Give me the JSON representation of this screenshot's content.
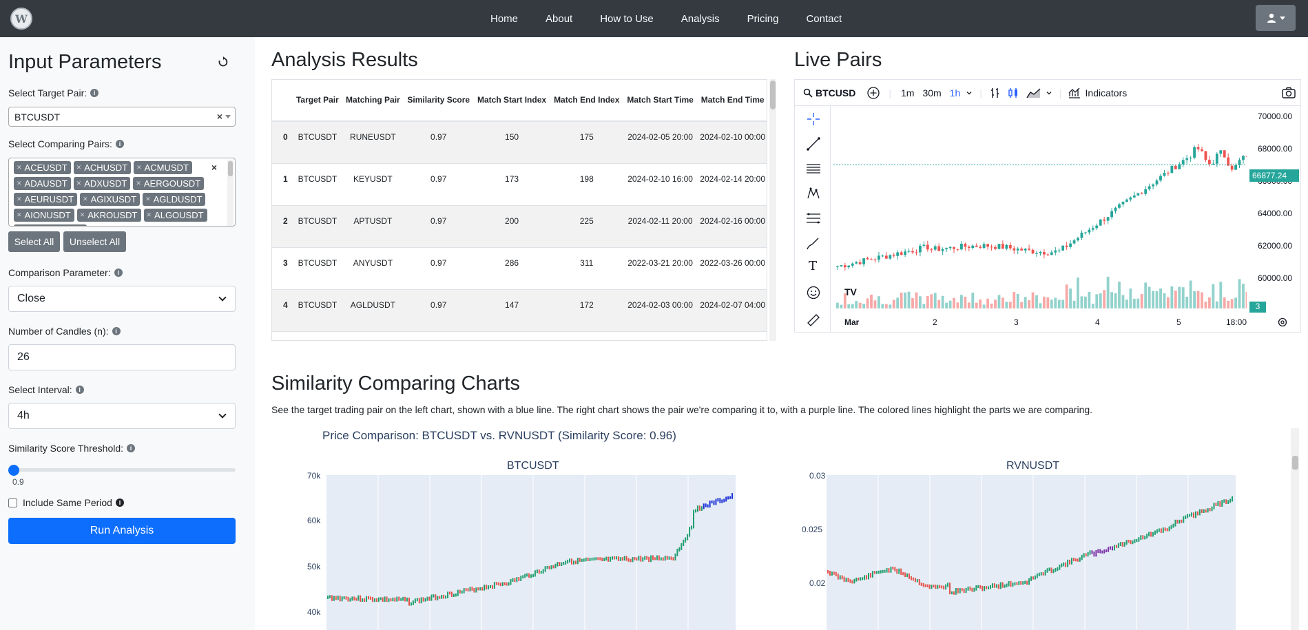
{
  "nav": {
    "logo_text": "W",
    "links": [
      "Home",
      "About",
      "How to Use",
      "Analysis",
      "Pricing",
      "Contact"
    ],
    "user_icon": "user-icon"
  },
  "input_panel": {
    "title": "Input Parameters",
    "reset_icon": "reset-icon",
    "target_pair_label": "Select Target Pair:",
    "target_pair_value": "BTCUSDT",
    "comparing_pairs_label": "Select Comparing Pairs:",
    "comparing_pairs": [
      "ACEUSDT",
      "ACHUSDT",
      "ACMUSDT",
      "ADAUSDT",
      "ADXUSDT",
      "AERGOUSDT",
      "AEURUSDT",
      "AGIXUSDT",
      "AGLDUSDT",
      "AIONUSDT",
      "AKROUSDT",
      "ALGOUSDT",
      "ALPACAUSDT"
    ],
    "select_all": "Select All",
    "unselect_all": "Unselect All",
    "comparison_parameter_label": "Comparison Parameter:",
    "comparison_parameter_value": "Close",
    "num_candles_label": "Number of Candles (n):",
    "num_candles_value": "26",
    "interval_label": "Select Interval:",
    "interval_value": "4h",
    "threshold_label": "Similarity Score Threshold:",
    "threshold_value": "0.9",
    "include_same_period_label": "Include Same Period",
    "include_same_period_checked": false,
    "run_button": "Run Analysis"
  },
  "analysis": {
    "title": "Analysis Results",
    "columns": [
      "",
      "Target Pair",
      "Matching Pair",
      "Similarity Score",
      "Match Start Index",
      "Match End Index",
      "Match Start Time",
      "Match End Time"
    ],
    "rows": [
      [
        "0",
        "BTCUSDT",
        "RUNEUSDT",
        "0.97",
        "150",
        "175",
        "2024-02-05 20:00",
        "2024-02-10 00:00"
      ],
      [
        "1",
        "BTCUSDT",
        "KEYUSDT",
        "0.97",
        "173",
        "198",
        "2024-02-10 16:00",
        "2024-02-14 20:00"
      ],
      [
        "2",
        "BTCUSDT",
        "APTUSDT",
        "0.97",
        "200",
        "225",
        "2024-02-11 20:00",
        "2024-02-16 00:00"
      ],
      [
        "3",
        "BTCUSDT",
        "ANYUSDT",
        "0.97",
        "286",
        "311",
        "2022-03-21 20:00",
        "2022-03-26 00:00"
      ],
      [
        "4",
        "BTCUSDT",
        "AGLDUSDT",
        "0.97",
        "147",
        "172",
        "2024-02-03 00:00",
        "2024-02-07 04:00"
      ]
    ]
  },
  "live_pairs": {
    "title": "Live Pairs",
    "symbol": "BTCUSD",
    "intervals": [
      "1m",
      "30m",
      "1h"
    ],
    "active_interval": "1h",
    "indicators_label": "Indicators",
    "price_ticks": [
      "70000.00",
      "68000.00",
      "66000.00",
      "64000.00",
      "62000.00",
      "60000.00"
    ],
    "last_price": "66877.24",
    "volume_badge": "3",
    "x_ticks": [
      "Mar",
      "2",
      "3",
      "4",
      "5",
      "18:00"
    ],
    "accent_up": "#26a69a",
    "accent_down": "#ef5350"
  },
  "similarity": {
    "title": "Similarity Comparing Charts",
    "description": "See the target trading pair on the left chart, shown with a blue line. The right chart shows the pair we're comparing it to, with a purple line. The colored lines highlight the parts we are comparing.",
    "plot_title": "Price Comparison: BTCUSDT vs. RVNUSDT (Similarity Score: 0.96)",
    "left_title": "BTCUSDT",
    "left_yticks": [
      "70k",
      "60k",
      "50k",
      "40k"
    ],
    "right_title": "RVNUSDT",
    "right_yticks": [
      "0.03",
      "0.025",
      "0.02"
    ]
  }
}
